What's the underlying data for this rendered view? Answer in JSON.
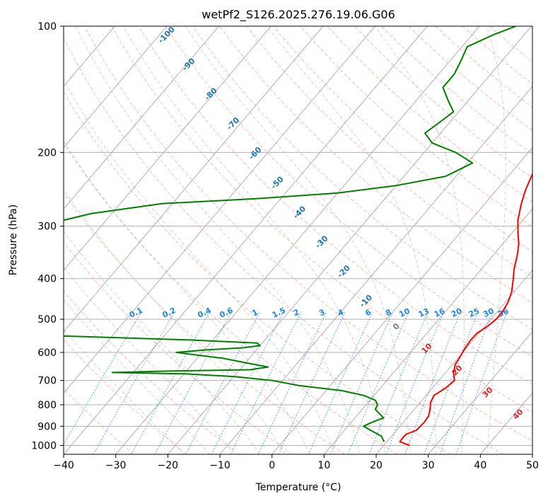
{
  "chart_data": {
    "type": "line",
    "subtype": "skew-t log-p diagram",
    "title": "wetPf2_S126.2025.276.19.06.G06",
    "xlabel": "Temperature (°C)",
    "ylabel": "Pressure (hPa)",
    "xlim": [
      -40,
      50
    ],
    "ylim": [
      1050,
      100
    ],
    "y_scale": "log",
    "grid": true,
    "x_ticks": [
      -40,
      -30,
      -20,
      -10,
      0,
      10,
      20,
      30,
      40,
      50
    ],
    "x_tick_labels": [
      "−40",
      "−30",
      "−20",
      "−10",
      "0",
      "10",
      "20",
      "30",
      "40",
      "50"
    ],
    "y_ticks": [
      1000,
      900,
      800,
      700,
      600,
      500,
      400,
      300,
      200,
      100
    ],
    "y_tick_labels": [
      "1000",
      "900",
      "800",
      "700",
      "600",
      "500",
      "400",
      "300",
      "200",
      "100"
    ],
    "colors": {
      "temperature": "#ff0000",
      "dewpoint": "#008000",
      "isotherm": "#b0b0b0",
      "dry_adiabat": "#fa8072",
      "moist_adiabat": "#8fbc8f",
      "mixing_ratio": "#1e88e5",
      "moist_adiabat_label": "#1f77b4",
      "dry_adiabat_label": "#d62728"
    },
    "series": [
      {
        "role": "temperature",
        "points": [
          [
            25.0,
            1000
          ],
          [
            22.5,
            980
          ],
          [
            22.4,
            960
          ],
          [
            22.5,
            940
          ],
          [
            23.8,
            920
          ],
          [
            24.0,
            880
          ],
          [
            23.8,
            850
          ],
          [
            23.0,
            820
          ],
          [
            22.0,
            790
          ],
          [
            21.5,
            760
          ],
          [
            22.5,
            730
          ],
          [
            23.0,
            700
          ],
          [
            21.5,
            670
          ],
          [
            20.5,
            640
          ],
          [
            20.3,
            620
          ],
          [
            19.8,
            590
          ],
          [
            19.5,
            560
          ],
          [
            19.6,
            540
          ],
          [
            20.5,
            520
          ],
          [
            21.0,
            500
          ],
          [
            21.0,
            480
          ],
          [
            20.5,
            455
          ],
          [
            19.5,
            430
          ],
          [
            18.0,
            405
          ],
          [
            16.3,
            380
          ],
          [
            14.5,
            350
          ],
          [
            13.0,
            330
          ],
          [
            11.0,
            310
          ],
          [
            9.0,
            290
          ],
          [
            7.0,
            265
          ],
          [
            5.5,
            245
          ],
          [
            4.3,
            225
          ],
          [
            3.8,
            200
          ],
          [
            5.0,
            185
          ],
          [
            5.8,
            170
          ],
          [
            6.2,
            160
          ],
          [
            6.0,
            148
          ],
          [
            5.7,
            135
          ],
          [
            4.8,
            125
          ],
          [
            3.8,
            115
          ],
          [
            3.3,
            108
          ],
          [
            4.0,
            102
          ],
          [
            4.2,
            100
          ]
        ]
      },
      {
        "role": "dewpoint",
        "points": [
          [
            19.5,
            980
          ],
          [
            18.0,
            950
          ],
          [
            15.0,
            920
          ],
          [
            13.0,
            900
          ],
          [
            14.0,
            880
          ],
          [
            15.5,
            860
          ],
          [
            14.0,
            840
          ],
          [
            12.5,
            820
          ],
          [
            12.2,
            800
          ],
          [
            11.0,
            780
          ],
          [
            8.0,
            760
          ],
          [
            3.0,
            740
          ],
          [
            -6.0,
            720
          ],
          [
            -12.0,
            700
          ],
          [
            -20.0,
            685
          ],
          [
            -30.0,
            675
          ],
          [
            -44.0,
            670
          ],
          [
            -34.0,
            665
          ],
          [
            -18.0,
            660
          ],
          [
            -15.0,
            650
          ],
          [
            -20.0,
            635
          ],
          [
            -25.0,
            620
          ],
          [
            -30.0,
            610
          ],
          [
            -35.0,
            600
          ],
          [
            -30.0,
            592
          ],
          [
            -23.0,
            585
          ],
          [
            -20.0,
            578
          ],
          [
            -21.0,
            570
          ],
          [
            -35.0,
            560
          ],
          [
            -60.0,
            548
          ],
          [
            -90.0,
            540
          ],
          [
            -100.0,
            530
          ],
          [
            -100.0,
            360
          ],
          [
            -95.0,
            340
          ],
          [
            -90.0,
            320
          ],
          [
            -82.0,
            300
          ],
          [
            -74.0,
            280
          ],
          [
            -62.0,
            265
          ],
          [
            -45.0,
            258
          ],
          [
            -30.0,
            250
          ],
          [
            -20.0,
            240
          ],
          [
            -12.0,
            228
          ],
          [
            -9.0,
            212
          ],
          [
            -14.0,
            200
          ],
          [
            -20.0,
            190
          ],
          [
            -23.0,
            180
          ],
          [
            -22.0,
            170
          ],
          [
            -21.0,
            160
          ],
          [
            -24.0,
            150
          ],
          [
            -27.0,
            140
          ],
          [
            -27.0,
            130
          ],
          [
            -28.0,
            120
          ],
          [
            -29.0,
            112
          ],
          [
            -26.0,
            105
          ],
          [
            -23.0,
            100
          ]
        ]
      }
    ],
    "annotations": {
      "mixing_ratio_labels": [
        "0.1",
        "0.2",
        "0.4",
        "0.6",
        "1",
        "1.5",
        "2",
        "3",
        "4",
        "6",
        "8",
        "10",
        "13",
        "16",
        "20",
        "25",
        "30",
        "36"
      ],
      "moist_adiabat_labels": [
        "-100",
        "-90",
        "-80",
        "-70",
        "-60",
        "-50",
        "-40",
        "-30",
        "-20",
        "-10"
      ],
      "dry_adiabat_labels": [
        "0",
        "10",
        "20",
        "30",
        "40"
      ]
    }
  }
}
